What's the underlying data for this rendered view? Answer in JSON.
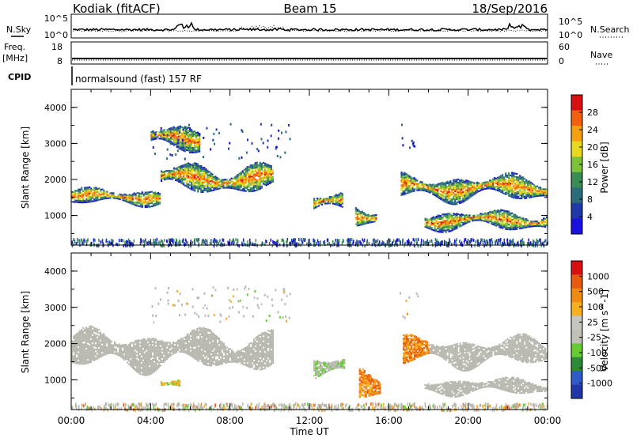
{
  "header": {
    "station": "Kodiak (fitACF)",
    "beam": "Beam 15",
    "date": "18/Sep/2016"
  },
  "panels": {
    "nsky": {
      "left_label": "N.Sky",
      "right_label": "N.Search",
      "left_ticks": [
        "10^5",
        "10^0"
      ],
      "right_ticks": [
        "10^5",
        "10^0"
      ]
    },
    "freq": {
      "left_label_1": "Freq.",
      "left_label_2": "[MHz]",
      "right_label": "Nave",
      "left_ticks": [
        "18",
        "8"
      ],
      "right_ticks": [
        "60",
        "0"
      ]
    },
    "cpid": {
      "label": "CPID",
      "program": "normalsound (fast) 157 RF"
    }
  },
  "colors": {
    "power_scale": [
      "#1a10e0",
      "#1f3aa8",
      "#2c6b7a",
      "#3a8c55",
      "#7cc23a",
      "#e8d820",
      "#f5a010",
      "#f06010",
      "#d81010"
    ],
    "velocity_scale": [
      "#2236a8",
      "#2f5ac8",
      "#2d8a3a",
      "#66cc33",
      "#c0c0b8",
      "#c6c6c0",
      "#f7b020",
      "#f08a10",
      "#e85a10",
      "#d81010"
    ],
    "ground_scatter": "#b8b8b0"
  },
  "chart_data": [
    {
      "type": "heatmap",
      "name": "power",
      "ylabel": "Slant Range [km]",
      "yticks": [
        "1000",
        "2000",
        "3000",
        "4000"
      ],
      "ylim": [
        180,
        4500
      ],
      "xlim": [
        0,
        24
      ],
      "colorbar_label": "Power [dB]",
      "colorbar_ticks": [
        "4",
        "8",
        "12",
        "16",
        "20",
        "24",
        "28"
      ],
      "colorbar_range": [
        0,
        32
      ],
      "scatter_regions": [
        {
          "t0": 0,
          "t1": 4.5,
          "r0": 1250,
          "r1": 1750
        },
        {
          "t0": 4.5,
          "t1": 10.2,
          "r0": 1550,
          "r1": 2450
        },
        {
          "t0": 4.0,
          "t1": 6.5,
          "r0": 2700,
          "r1": 3500
        },
        {
          "t0": 12.2,
          "t1": 13.7,
          "r0": 1000,
          "r1": 1650
        },
        {
          "t0": 14.3,
          "t1": 15.4,
          "r0": 650,
          "r1": 1350
        },
        {
          "t0": 16.6,
          "t1": 24,
          "r0": 1350,
          "r1": 2150
        },
        {
          "t0": 17.8,
          "t1": 24,
          "r0": 550,
          "r1": 1150
        }
      ]
    },
    {
      "type": "heatmap",
      "name": "velocity",
      "ylabel": "Slant Range [km]",
      "yticks": [
        "1000",
        "2000",
        "3000",
        "4000"
      ],
      "ylim": [
        180,
        4500
      ],
      "xlim": [
        0,
        24
      ],
      "colorbar_label": "Velocity [m s^-1]",
      "colorbar_ticks": [
        "1000",
        "500",
        "100",
        "25",
        "-25",
        "-100",
        "-500",
        "-1000"
      ],
      "colorbar_range": [
        -1000,
        1000
      ],
      "xticks": [
        "00:00",
        "04:00",
        "08:00",
        "12:00",
        "16:00",
        "20:00",
        "00:00"
      ],
      "xlabel": "Time UT",
      "scatter_regions": [
        {
          "t0": 0,
          "t1": 10.2,
          "r0": 1200,
          "r1": 2400
        },
        {
          "t0": 4.5,
          "t1": 5.5,
          "r0": 700,
          "r1": 1000
        },
        {
          "t0": 12.2,
          "t1": 13.8,
          "r0": 1000,
          "r1": 1700
        },
        {
          "t0": 14.5,
          "t1": 15.6,
          "r0": 400,
          "r1": 1400
        },
        {
          "t0": 16.7,
          "t1": 24,
          "r0": 1300,
          "r1": 2200
        },
        {
          "t0": 17.8,
          "t1": 24,
          "r0": 550,
          "r1": 1050
        }
      ]
    }
  ]
}
